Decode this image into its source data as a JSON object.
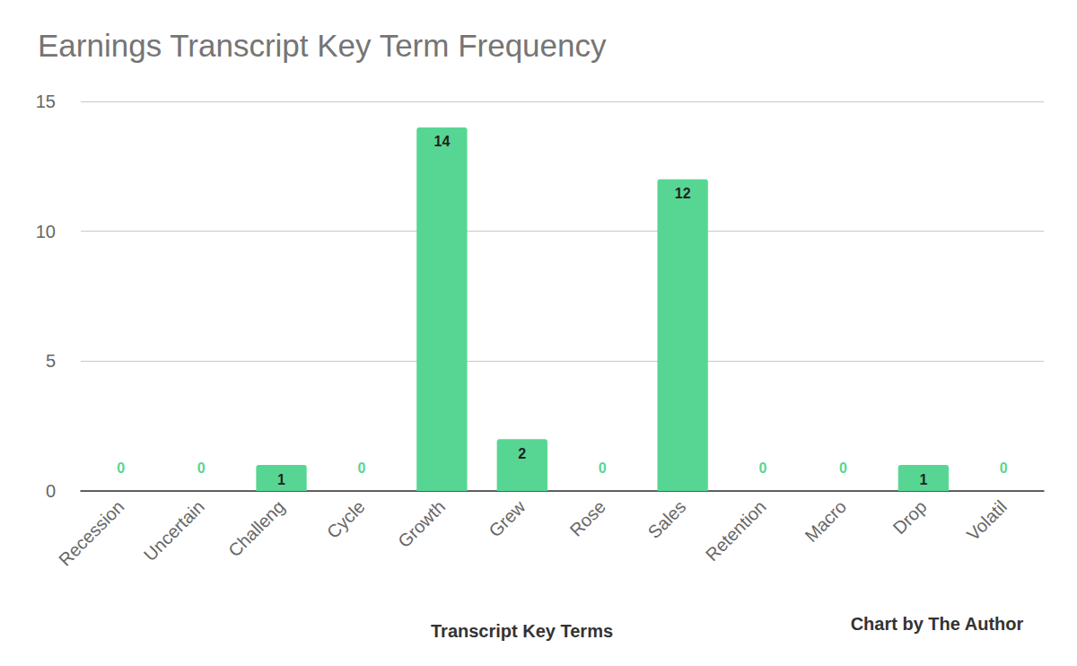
{
  "chart_data": {
    "type": "bar",
    "title": "Earnings Transcript Key Term Frequency",
    "x_label": "Transcript Key Terms",
    "annotation": "Chart by The Author",
    "categories": [
      "Recession",
      "Uncertain",
      "Challeng",
      "Cycle",
      "Growth",
      "Grew",
      "Rose",
      "Sales",
      "Retention",
      "Macro",
      "Drop",
      "Volatil"
    ],
    "values": [
      0,
      0,
      1,
      0,
      14,
      2,
      0,
      12,
      0,
      0,
      1,
      0
    ],
    "color": "#57d693",
    "ylim": [
      0,
      15
    ],
    "yticks": [
      0,
      5,
      10,
      15
    ],
    "grid": true,
    "data_labels": true
  }
}
